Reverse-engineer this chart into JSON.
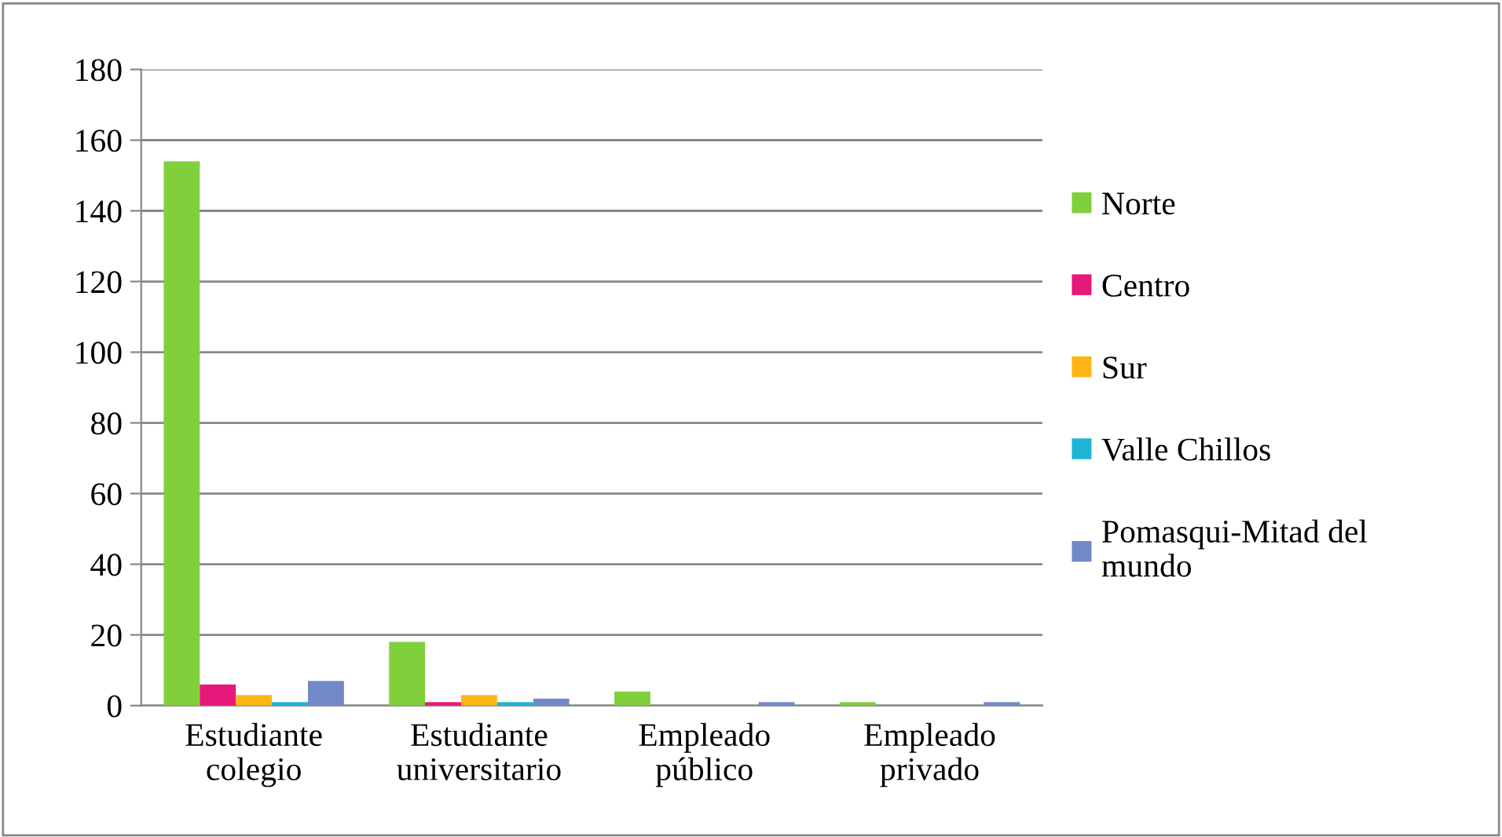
{
  "chart_data": {
    "type": "bar",
    "categories": [
      "Estudiante\ncolegio",
      "Estudiante\nuniversitario",
      "Empleado\npúblico",
      "Empleado\nprivado"
    ],
    "series": [
      {
        "name": "Norte",
        "color": "#80d03c",
        "values": [
          154,
          18,
          4,
          1
        ]
      },
      {
        "name": "Centro",
        "color": "#e8177a",
        "values": [
          6,
          1,
          0,
          0
        ]
      },
      {
        "name": "Sur",
        "color": "#fdb515",
        "values": [
          3,
          3,
          0,
          0
        ]
      },
      {
        "name": "Valle Chillos",
        "color": "#1fb4d6",
        "values": [
          1,
          1,
          0,
          0
        ]
      },
      {
        "name": "Pomasqui-Mitad del\nmundo",
        "color": "#7289c8",
        "values": [
          7,
          2,
          1,
          1
        ]
      }
    ],
    "ylim": [
      0,
      180
    ],
    "yticks": [
      0,
      20,
      40,
      60,
      80,
      100,
      120,
      140,
      160,
      180
    ],
    "grid": "y",
    "legend": "right"
  }
}
